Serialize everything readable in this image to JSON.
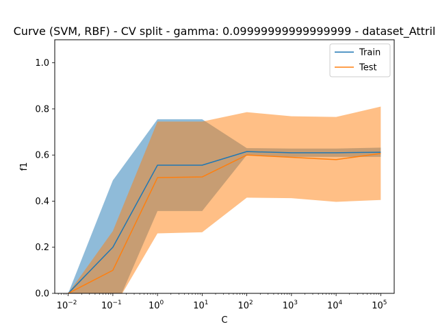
{
  "chart_data": {
    "type": "line",
    "title": "Curve (SVM, RBF) - CV split - gamma: 0.09999999999999999 - dataset_Attril",
    "xlabel": "C",
    "ylabel": "f1",
    "xscale": "log",
    "xlim": [
      0.005,
      200000
    ],
    "ylim": [
      0,
      1.1
    ],
    "x": [
      0.01,
      0.1,
      1,
      10,
      100,
      1000,
      10000,
      100000
    ],
    "x_tick_values": [
      0.01,
      0.1,
      1,
      10,
      100,
      1000,
      10000,
      100000
    ],
    "x_tick_labels": [
      {
        "base": "10",
        "exp": "−2"
      },
      {
        "base": "10",
        "exp": "−1"
      },
      {
        "base": "10",
        "exp": "0"
      },
      {
        "base": "10",
        "exp": "1"
      },
      {
        "base": "10",
        "exp": "2"
      },
      {
        "base": "10",
        "exp": "3"
      },
      {
        "base": "10",
        "exp": "4"
      },
      {
        "base": "10",
        "exp": "5"
      }
    ],
    "y_ticks": [
      0.0,
      0.2,
      0.4,
      0.6,
      0.8,
      1.0
    ],
    "y_tick_labels": [
      "0.0",
      "0.2",
      "0.4",
      "0.6",
      "0.8",
      "1.0"
    ],
    "legend_position": "top-right",
    "grid": false,
    "series": [
      {
        "name": "Train",
        "color": "#1f77b4",
        "values": [
          0.0,
          0.2,
          0.556,
          0.556,
          0.615,
          0.61,
          0.61,
          0.612
        ],
        "band_upper": [
          0.0,
          0.49,
          0.755,
          0.755,
          0.63,
          0.628,
          0.628,
          0.632
        ],
        "band_lower": [
          0.0,
          -0.09,
          0.357,
          0.357,
          0.6,
          0.592,
          0.592,
          0.592
        ]
      },
      {
        "name": "Test",
        "color": "#ff7f0e",
        "values": [
          0.0,
          0.1,
          0.502,
          0.505,
          0.6,
          0.59,
          0.58,
          0.607
        ],
        "band_upper": [
          0.0,
          0.27,
          0.745,
          0.745,
          0.786,
          0.768,
          0.765,
          0.81
        ],
        "band_lower": [
          0.0,
          -0.07,
          0.26,
          0.265,
          0.415,
          0.413,
          0.397,
          0.405
        ]
      }
    ]
  }
}
